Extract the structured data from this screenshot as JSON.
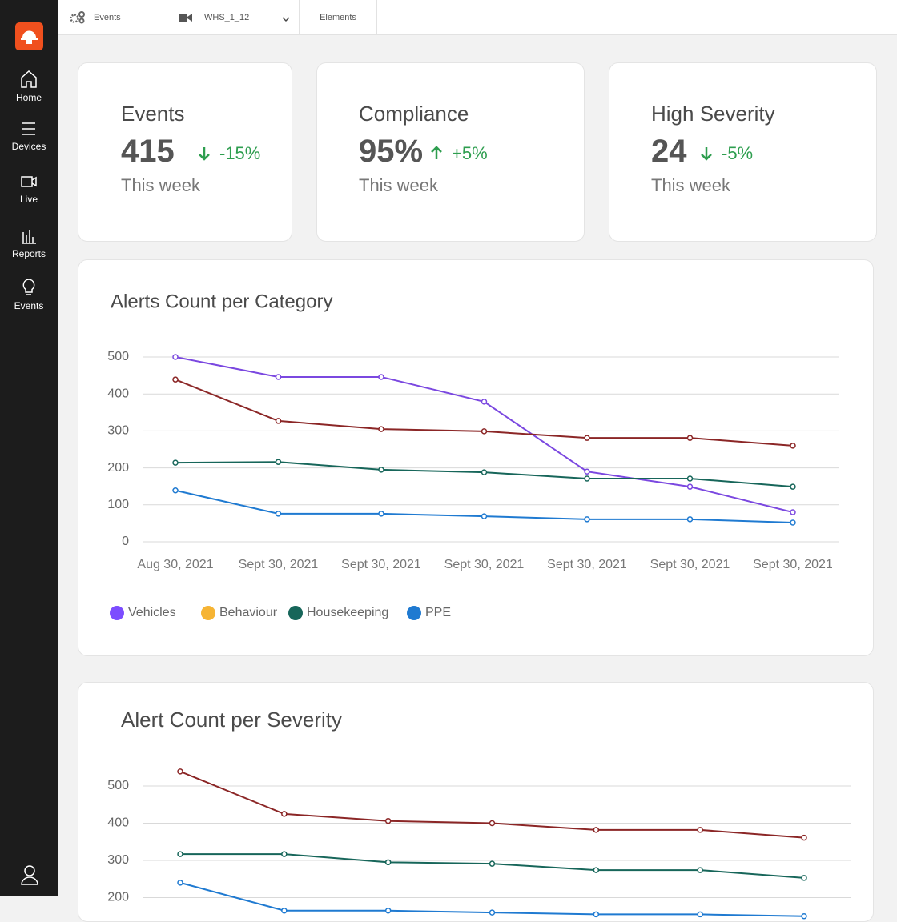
{
  "topbar": {
    "tabs": [
      "Events",
      "WHS_1_12",
      "Elements"
    ]
  },
  "sidebar": {
    "items": [
      "Home",
      "Devices",
      "Live",
      "Reports",
      "Events"
    ]
  },
  "kpis": [
    {
      "title": "Events",
      "value": "415",
      "change": "-15%",
      "period": "This week"
    },
    {
      "title": "Compliance",
      "value": "95%",
      "change": "+5%",
      "period": "This week"
    },
    {
      "title": "High Severity",
      "value": "24",
      "change": "-5%",
      "period": "This week"
    }
  ],
  "chart_data": [
    {
      "type": "line",
      "title": "Alerts Count per Category",
      "categories": [
        "Aug 30, 2021",
        "Sept 30, 2021",
        "Sept 30, 2021",
        "Sept 30, 2021",
        "Sept 30, 2021",
        "Sept 30, 2021",
        "Sept 30, 2021"
      ],
      "series": [
        {
          "name": "Vehicles",
          "color": "#7c4dff",
          "line_color": "#7b48e0",
          "values": [
            500,
            446,
            446,
            379,
            190,
            149,
            80
          ]
        },
        {
          "name": "Behaviour",
          "color": "#f6b434",
          "line_color": "#8b2626",
          "values": [
            439,
            327,
            305,
            299,
            281,
            281,
            260
          ]
        },
        {
          "name": "Housekeeping",
          "color": "#17665a",
          "line_color": "#17665a",
          "values": [
            214,
            216,
            195,
            188,
            171,
            171,
            149
          ]
        },
        {
          "name": "PPE",
          "color": "#1f7ad1",
          "line_color": "#1f7ad1",
          "values": [
            139,
            76,
            76,
            69,
            61,
            61,
            52
          ]
        }
      ],
      "ylim": [
        0,
        500
      ],
      "yticks": [
        0,
        100,
        200,
        300,
        400,
        500
      ],
      "grid": true,
      "legend": "bottom-left"
    },
    {
      "type": "line",
      "title": "Alert Count per Severity",
      "categories": [
        null,
        null,
        null,
        null,
        null,
        null,
        null
      ],
      "series": [
        {
          "color": "#8b2626",
          "values": [
            539,
            425,
            406,
            400,
            382,
            382,
            361
          ]
        },
        {
          "color": "#17665a",
          "values": [
            317,
            317,
            295,
            291,
            274,
            274,
            253
          ]
        },
        {
          "color": "#1f7ad1",
          "values": [
            240,
            165,
            165,
            160,
            155,
            155,
            150
          ]
        }
      ],
      "ylim": [
        0,
        500
      ],
      "yticks": [
        200,
        300,
        400,
        500
      ],
      "grid": true
    }
  ]
}
